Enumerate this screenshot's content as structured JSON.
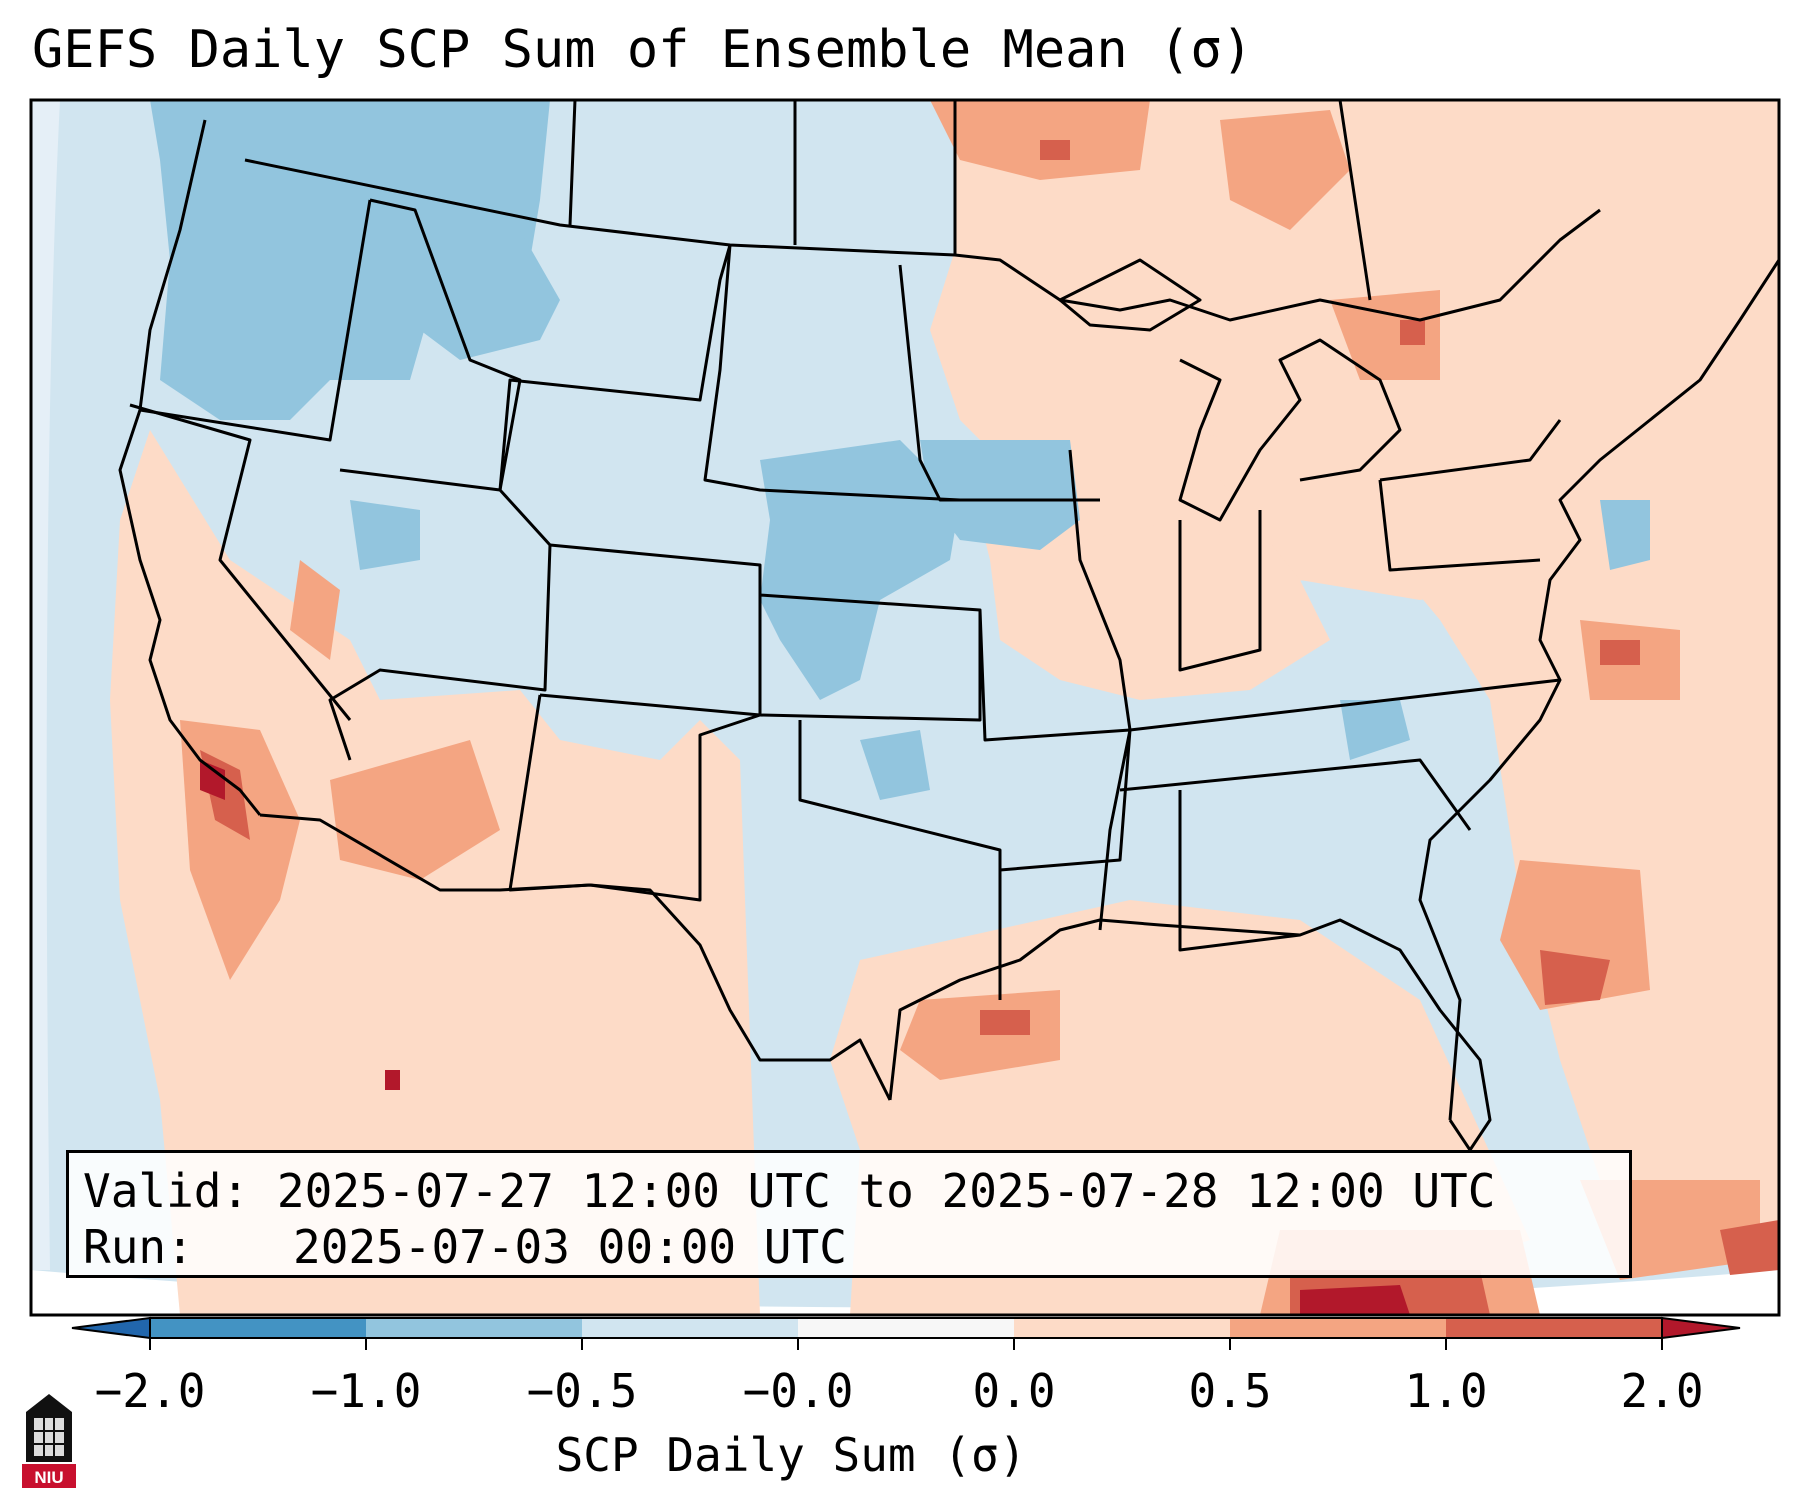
{
  "title": "GEFS Daily SCP Sum of Ensemble Mean (σ)",
  "info": {
    "valid_label": "Valid:",
    "valid_value": "2025-07-27 12:00 UTC to 2025-07-28 12:00 UTC",
    "run_label": "Run:",
    "run_value": "2025-07-03 00:00 UTC"
  },
  "colorbar": {
    "label": "SCP Daily Sum (σ)",
    "tick_labels": [
      "−2.0",
      "−1.0",
      "−0.5",
      "−0.0",
      "0.0",
      "0.5",
      "1.0",
      "2.0"
    ],
    "bins": [
      -2.0,
      -1.0,
      -0.5,
      -0.0,
      0.0,
      0.5,
      1.0,
      2.0
    ],
    "colors": {
      "below_min": "#2166ac",
      "b1": "#4393c3",
      "b2": "#92c5de",
      "b3": "#d1e5f0",
      "b4": "#f7f7f7",
      "b5": "#fddbc7",
      "b6": "#f4a582",
      "b7": "#d6604d",
      "above_max": "#b2182b"
    }
  },
  "logo_text": "NIU",
  "map": {
    "region": "Contiguous United States",
    "background_color": "#d1e5f0",
    "border_color": "#000000"
  }
}
